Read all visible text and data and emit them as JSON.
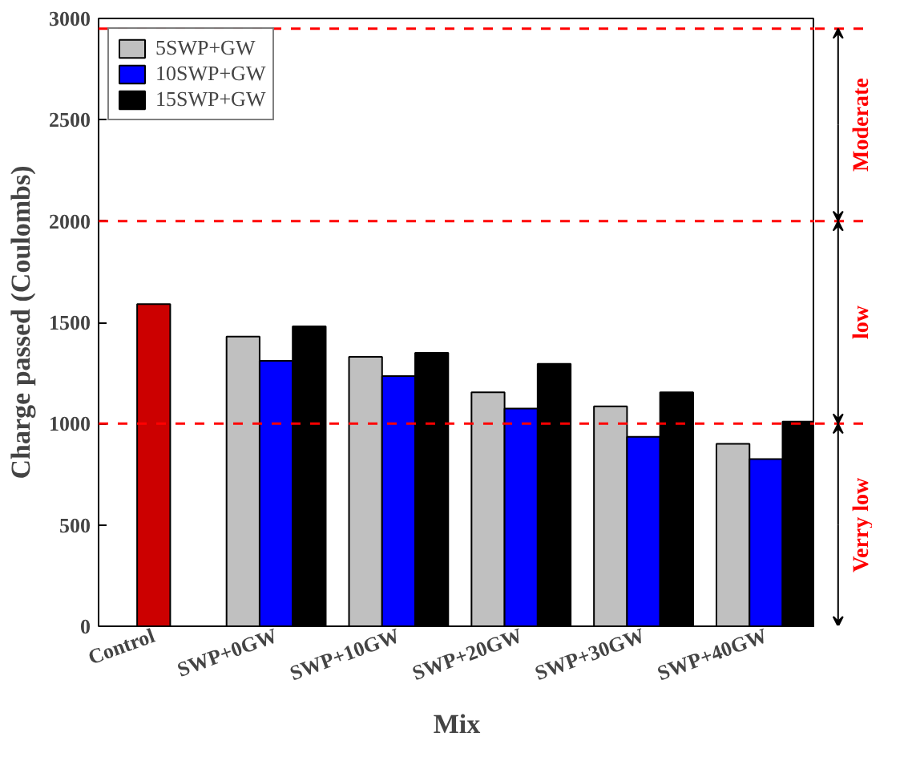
{
  "chart_data": {
    "type": "bar",
    "xlabel": "Mix",
    "ylabel": "Charge passed (Coulombs)",
    "categories": [
      "Control",
      "SWP+0GW",
      "SWP+10GW",
      "SWP+20GW",
      "SWP+30GW",
      "SWP+40GW"
    ],
    "series": [
      {
        "name": "5SWP+GW",
        "color": "#c0c0c0",
        "values": [
          null,
          1430,
          1330,
          1155,
          1085,
          900
        ]
      },
      {
        "name": "10SWP+GW",
        "color": "#0000ff",
        "colors": [
          "#cc0000",
          "#0000ff",
          "#0000ff",
          "#0000ff",
          "#0000ff",
          "#0000ff"
        ],
        "values": [
          1590,
          1310,
          1235,
          1075,
          935,
          825
        ]
      },
      {
        "name": "15SWP+GW",
        "color": "#000000",
        "values": [
          null,
          1480,
          1350,
          1295,
          1155,
          1010
        ]
      }
    ],
    "ylim": [
      0,
      3000
    ],
    "yticks": [
      0,
      500,
      1000,
      1500,
      2000,
      2500,
      3000
    ],
    "ref_lines": [
      {
        "axis": "y",
        "value": 2950,
        "color": "#ff0000",
        "line_style": "dashed"
      },
      {
        "axis": "y",
        "value": 2000,
        "color": "#ff0000",
        "line_style": "dashed"
      },
      {
        "axis": "y",
        "value": 1000,
        "color": "#ff0000",
        "line_style": "dashed"
      }
    ],
    "annotations": [
      "Moderate",
      "low",
      "Verry low"
    ],
    "grid": false,
    "legend": "top left"
  }
}
